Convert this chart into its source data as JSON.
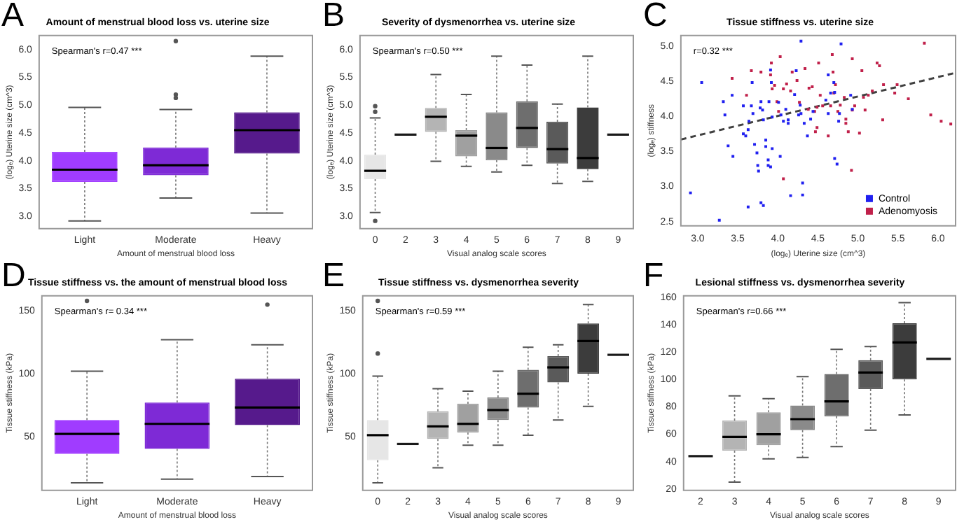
{
  "chart_data": [
    {
      "type": "box",
      "title": "Amount of menstrual blood loss vs. uterine size",
      "xlabel": "Amount of menstrual blood loss",
      "ylabel": "(logₑ) Uterine size (cm^3)",
      "annotations": [
        "A",
        "Spearman's r=0.47 ***"
      ],
      "categories": [
        "Light",
        "Moderate",
        "Heavy"
      ],
      "colors": [
        "#a03cff",
        "#7e2ad6",
        "#561a8c"
      ],
      "boxes": [
        {
          "low": 2.92,
          "q1": 3.62,
          "median": 3.84,
          "q3": 4.16,
          "high": 4.96
        },
        {
          "low": 3.33,
          "q1": 3.74,
          "median": 3.92,
          "q3": 4.24,
          "high": 4.92,
          "outliers": [
            5.19,
            5.13,
            6.15
          ]
        },
        {
          "low": 3.06,
          "q1": 4.13,
          "median": 4.55,
          "q3": 4.87,
          "high": 5.88
        }
      ],
      "ylim": [
        2.78,
        6.25
      ],
      "yticks": [
        {
          "value": 3,
          "label": "3.0"
        },
        {
          "value": 3.5,
          "label": "3.5"
        },
        {
          "value": 4,
          "label": "4.0"
        },
        {
          "value": 4.5,
          "label": "4.5"
        },
        {
          "value": 5,
          "label": "5.0"
        },
        {
          "value": 5.5,
          "label": "5.5"
        },
        {
          "value": 6,
          "label": "6.0"
        }
      ]
    },
    {
      "type": "box",
      "title": "Severity of dysmenorrhea vs. uterine size",
      "xlabel": "Visual analog scale scores",
      "ylabel": "(logₑ) Uterine size (cm^3)",
      "annotations": [
        "B",
        "Spearman's r=0.50 ***"
      ],
      "categories": [
        "0",
        "2",
        "3",
        "4",
        "5",
        "6",
        "7",
        "8",
        "9"
      ],
      "colors": [
        "#e6e6e6",
        "#1a1a1a",
        "#b4b4b4",
        "#a0a0a0",
        "#8a8a8a",
        "#6e6e6e",
        "#5a5a5a",
        "#3c3c3c",
        "#1a1a1a"
      ],
      "boxes": [
        {
          "low": 3.07,
          "q1": 3.67,
          "median": 3.82,
          "q3": 4.11,
          "high": 4.77,
          "outliers": [
            4.98,
            4.88,
            2.92
          ]
        },
        {
          "low": 4.47,
          "q1": 4.47,
          "median": 4.47,
          "q3": 4.47,
          "high": 4.47
        },
        {
          "low": 3.99,
          "q1": 4.52,
          "median": 4.79,
          "q3": 4.95,
          "high": 5.55
        },
        {
          "low": 3.9,
          "q1": 4.08,
          "median": 4.45,
          "q3": 4.55,
          "high": 5.19
        },
        {
          "low": 3.8,
          "q1": 4.01,
          "median": 4.23,
          "q3": 4.87,
          "high": 5.88
        },
        {
          "low": 3.92,
          "q1": 4.23,
          "median": 4.59,
          "q3": 5.07,
          "high": 5.72
        },
        {
          "low": 3.59,
          "q1": 3.95,
          "median": 4.21,
          "q3": 4.7,
          "high": 5.02
        },
        {
          "low": 3.63,
          "q1": 3.85,
          "median": 4.05,
          "q3": 4.96,
          "high": 5.88
        },
        {
          "low": 4.47,
          "q1": 4.47,
          "median": 4.47,
          "q3": 4.47,
          "high": 4.47
        }
      ],
      "ylim": [
        2.78,
        6.25
      ],
      "yticks": [
        {
          "value": 3,
          "label": "3.0"
        },
        {
          "value": 3.5,
          "label": "3.5"
        },
        {
          "value": 4,
          "label": "4.0"
        },
        {
          "value": 4.5,
          "label": "4.5"
        },
        {
          "value": 5,
          "label": "5.0"
        },
        {
          "value": 5.5,
          "label": "5.5"
        },
        {
          "value": 6,
          "label": "6.0"
        }
      ]
    },
    {
      "type": "scatter",
      "title": "Tissue stiffness vs. uterine size",
      "xlabel": "(logₑ) Uterine size (cm^3)",
      "ylabel": "(logₑ) stiffness",
      "annotations": [
        "C",
        "r=0.32 ***"
      ],
      "legend": "bottom right",
      "series": [
        {
          "name": "Control",
          "color": "#2020f0",
          "type": "scatter",
          "marker": "square",
          "x": [
            3.05,
            2.91,
            3.32,
            3.34,
            3.38,
            3.44,
            3.43,
            3.57,
            3.57,
            3.6,
            3.63,
            3.64,
            3.68,
            3.67,
            3.69,
            3.71,
            3.74,
            3.75,
            3.76,
            3.78,
            3.79,
            3.81,
            3.82,
            3.85,
            3.85,
            3.88,
            3.88,
            3.89,
            3.91,
            3.92,
            3.93,
            3.93,
            3.91,
            3.79,
            3.82,
            3.63,
            3.27,
            4.01,
            4.03,
            4.04,
            4.07,
            4.1,
            4.13,
            4.16,
            4.13,
            4.21,
            4.26,
            4.28,
            4.29,
            4.31,
            4.31,
            4.33,
            4.37,
            4.41,
            4.44,
            4.6,
            4.63,
            4.63,
            4.66,
            4.7,
            4.71,
            4.71,
            4.74,
            4.76,
            4.77,
            4.79,
            4.91,
            4.93,
            4.29,
            4.23
          ],
          "values": [
            4.48,
            2.91,
            4.21,
            4.02,
            3.58,
            3.43,
            4.3,
            4.15,
            3.75,
            3.72,
            3.81,
            3.93,
            4.48,
            4.15,
            4.04,
            3.6,
            3.48,
            3.3,
            3.22,
            4.12,
            4.21,
            4.09,
            3.95,
            3.66,
            3.57,
            3.3,
            3.38,
            4.21,
            4.66,
            4.48,
            3.99,
            3.54,
            3.28,
            2.77,
            2.73,
            2.71,
            2.52,
            4.2,
            3.43,
            4.02,
            3.93,
            4.1,
            3.95,
            2.87,
            3.9,
            4.31,
            4.02,
            4.16,
            4.04,
            3.05,
            2.88,
            3.9,
            3.72,
            3.96,
            4.07,
            4.23,
            4.59,
            4.04,
            4.33,
            4.48,
            4.34,
            3.4,
            3.32,
            3.93,
            4.04,
            5.03,
            4.3,
            4.1,
            5.07,
            4.65
          ]
        },
        {
          "name": "Adenomyosis",
          "color": "#c0204a",
          "type": "scatter",
          "marker": "square",
          "x": [
            3.43,
            3.61,
            3.67,
            3.79,
            3.92,
            3.91,
            3.93,
            3.96,
            3.99,
            4.01,
            4.03,
            4.07,
            4.11,
            4.16,
            4.18,
            4.24,
            4.27,
            4.34,
            4.38,
            4.39,
            4.43,
            4.46,
            4.49,
            4.47,
            4.51,
            4.53,
            4.56,
            4.63,
            4.66,
            4.68,
            4.69,
            4.7,
            4.72,
            4.75,
            4.78,
            4.83,
            4.85,
            4.88,
            4.92,
            4.93,
            4.96,
            5.02,
            5.05,
            5.07,
            5.09,
            5.13,
            5.18,
            5.24,
            5.27,
            5.31,
            5.32,
            5.49,
            5.46,
            5.63,
            5.83,
            5.91,
            6.04,
            6.16,
            4.07,
            4.49,
            4.85,
            4.93
          ],
          "values": [
            4.54,
            4.3,
            4.65,
            4.63,
            4.76,
            4.59,
            4.39,
            4.44,
            4.21,
            4.07,
            4.85,
            4.39,
            4.46,
            4.36,
            4.63,
            4.51,
            4.2,
            4.68,
            4.1,
            4.4,
            4.42,
            4.07,
            4.13,
            3.78,
            4.76,
            4.3,
            4.15,
            3.72,
            4.15,
            4.88,
            4.63,
            4.33,
            4.45,
            4.07,
            4.16,
            4.27,
            3.9,
            3.78,
            3.23,
            4.09,
            4.15,
            3.76,
            4.65,
            4.27,
            4.09,
            4.3,
            4.36,
            4.76,
            4.72,
            3.95,
            4.45,
            4.45,
            4.33,
            4.25,
            5.04,
            4.02,
            3.93,
            3.89,
            3.11,
            3.84,
            3.96,
            4.82
          ]
        },
        {
          "type": "line",
          "color": "#404040",
          "line_style": "dashed",
          "x": [
            2.79,
            6.22
          ],
          "values": [
            3.67,
            4.62
          ]
        }
      ],
      "xlim": [
        2.79,
        6.22
      ],
      "xticks": [
        {
          "value": 3,
          "label": "3.0"
        },
        {
          "value": 3.5,
          "label": "3.5"
        },
        {
          "value": 4,
          "label": "4.0"
        },
        {
          "value": 4.5,
          "label": "4.5"
        },
        {
          "value": 5,
          "label": "5.0"
        },
        {
          "value": 5.5,
          "label": "5.5"
        },
        {
          "value": 6,
          "label": "6.0"
        }
      ],
      "ylim": [
        2.44,
        5.15
      ],
      "yticks": [
        {
          "value": 2.5,
          "label": "2.5"
        },
        {
          "value": 3,
          "label": "3.0"
        },
        {
          "value": 3.5,
          "label": "3.5"
        },
        {
          "value": 4,
          "label": "4.0"
        },
        {
          "value": 4.5,
          "label": "4.5"
        },
        {
          "value": 5,
          "label": "5.0"
        }
      ]
    },
    {
      "type": "box",
      "title": "Tissue stiffness vs. the amount of menstrual blood loss",
      "xlabel": "Amount of menstrual blood loss",
      "ylabel": "Tissue stiffness (kPa)",
      "annotations": [
        "D",
        "Spearman's r= 0.34 ***"
      ],
      "categories": [
        "Light",
        "Moderate",
        "Heavy"
      ],
      "colors": [
        "#a03cff",
        "#7e2ad6",
        "#561a8c"
      ],
      "boxes": [
        {
          "low": 13,
          "q1": 36,
          "median": 52,
          "q3": 63,
          "high": 102,
          "outliers": [
            158
          ]
        },
        {
          "low": 16,
          "q1": 40,
          "median": 60,
          "q3": 77,
          "high": 127
        },
        {
          "low": 18,
          "q1": 59,
          "median": 73,
          "q3": 96,
          "high": 123,
          "outliers": [
            155
          ]
        }
      ],
      "ylim": [
        7,
        162
      ],
      "yticks": [
        50,
        100,
        150
      ]
    },
    {
      "type": "box",
      "title": "Tissue stiffness vs. dysmenorrhea severity",
      "xlabel": "Visual analog scale scores",
      "ylabel": "Tissue stiffness (kPa)",
      "annotations": [
        "E",
        "Spearman's r=0.59 ***"
      ],
      "categories": [
        "0",
        "2",
        "3",
        "4",
        "5",
        "6",
        "7",
        "8",
        "9"
      ],
      "colors": [
        "#e6e6e6",
        "#1a1a1a",
        "#b4b4b4",
        "#a0a0a0",
        "#8a8a8a",
        "#6e6e6e",
        "#5a5a5a",
        "#3c3c3c",
        "#1a1a1a"
      ],
      "boxes": [
        {
          "low": 13,
          "q1": 31,
          "median": 51,
          "q3": 63,
          "high": 98,
          "outliers": [
            116,
            158
          ]
        },
        {
          "low": 44,
          "q1": 44,
          "median": 44,
          "q3": 44,
          "high": 44
        },
        {
          "low": 25,
          "q1": 48,
          "median": 58,
          "q3": 70,
          "high": 88
        },
        {
          "low": 43,
          "q1": 53,
          "median": 60,
          "q3": 76,
          "high": 86
        },
        {
          "low": 43,
          "q1": 63,
          "median": 71,
          "q3": 81,
          "high": 102
        },
        {
          "low": 51,
          "q1": 73,
          "median": 84,
          "q3": 103,
          "high": 121
        },
        {
          "low": 63,
          "q1": 93,
          "median": 105,
          "q3": 114,
          "high": 123
        },
        {
          "low": 74,
          "q1": 100,
          "median": 126,
          "q3": 140,
          "high": 155
        },
        {
          "low": 115,
          "q1": 115,
          "median": 115,
          "q3": 115,
          "high": 115
        }
      ],
      "ylim": [
        7,
        162
      ],
      "yticks": [
        50,
        100,
        150
      ]
    },
    {
      "type": "box",
      "title": "Lesional stiffness vs. dysmenorrhea severity",
      "xlabel": "Visual analog scale scores",
      "ylabel": "Tissue stiffness (kPa)",
      "annotations": [
        "F",
        "Spearman's r=0.66 ***"
      ],
      "categories": [
        "2",
        "3",
        "4",
        "5",
        "6",
        "7",
        "8",
        "9"
      ],
      "colors": [
        "#1a1a1a",
        "#b4b4b4",
        "#a0a0a0",
        "#8a8a8a",
        "#6e6e6e",
        "#5a5a5a",
        "#3c3c3c",
        "#1a1a1a"
      ],
      "boxes": [
        {
          "low": 44,
          "q1": 44,
          "median": 44,
          "q3": 44,
          "high": 44
        },
        {
          "low": 25,
          "q1": 48,
          "median": 58,
          "q3": 70,
          "high": 88
        },
        {
          "low": 42,
          "q1": 52,
          "median": 60,
          "q3": 76,
          "high": 86
        },
        {
          "low": 43,
          "q1": 63,
          "median": 71,
          "q3": 81,
          "high": 102
        },
        {
          "low": 51,
          "q1": 73,
          "median": 84,
          "q3": 104,
          "high": 122
        },
        {
          "low": 63,
          "q1": 93,
          "median": 105,
          "q3": 114,
          "high": 124
        },
        {
          "low": 74,
          "q1": 100,
          "median": 127,
          "q3": 141,
          "high": 156
        },
        {
          "low": 115,
          "q1": 115,
          "median": 115,
          "q3": 115,
          "high": 115
        }
      ],
      "ylim": [
        19,
        161
      ],
      "yticks": [
        20,
        40,
        60,
        80,
        100,
        120,
        140,
        160
      ]
    }
  ]
}
